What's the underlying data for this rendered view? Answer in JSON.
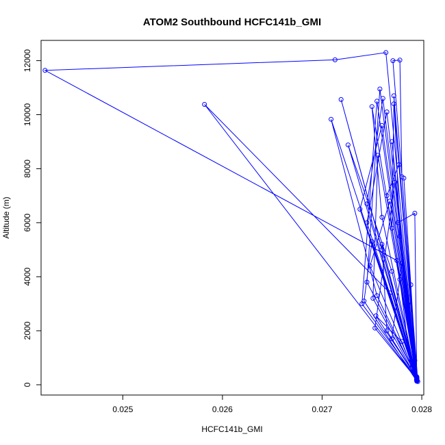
{
  "chart_data": {
    "type": "line",
    "title": "ATOM2 Southbound HCFC141b_GMI",
    "xlabel": "HCFC141b_GMI",
    "ylabel": "Altitude (m)",
    "xlim": [
      0.02418,
      0.02802
    ],
    "ylim": [
      -380,
      12750
    ],
    "x_ticks": [
      0.025,
      0.026,
      0.027,
      0.028
    ],
    "x_tick_labels": [
      "0.025",
      "0.026",
      "0.027",
      "0.028"
    ],
    "y_ticks": [
      0,
      2000,
      4000,
      6000,
      8000,
      10000,
      12000
    ],
    "y_tick_labels": [
      "0",
      "2000",
      "4000",
      "6000",
      "8000",
      "10000",
      "12000"
    ],
    "grid": false,
    "color": "#0000ff",
    "series": [
      {
        "points": [
          [
            0.02795,
            150
          ],
          [
            0.02764,
            12300
          ],
          [
            0.02713,
            12030
          ],
          [
            0.02422,
            11640
          ],
          [
            0.02775,
            4600
          ],
          [
            0.02795,
            200
          ],
          [
            0.02582,
            10380
          ],
          [
            0.02768,
            3400
          ],
          [
            0.02796,
            120
          ],
          [
            0.02771,
            12000
          ],
          [
            0.02778,
            12020
          ],
          [
            0.0278,
            7700
          ],
          [
            0.02795,
            180
          ],
          [
            0.02758,
            10950
          ],
          [
            0.02745,
            3800
          ],
          [
            0.02795,
            300
          ],
          [
            0.02719,
            10560
          ],
          [
            0.0276,
            5000
          ],
          [
            0.02795,
            220
          ],
          [
            0.02709,
            9830
          ],
          [
            0.02755,
            3300
          ],
          [
            0.02795,
            250
          ],
          [
            0.02726,
            8880
          ],
          [
            0.0277,
            4200
          ],
          [
            0.02795,
            160
          ],
          [
            0.0275,
            10300
          ],
          [
            0.0276,
            6200
          ],
          [
            0.02795,
            190
          ],
          [
            0.02755,
            10500
          ],
          [
            0.0274,
            3000
          ],
          [
            0.02795,
            230
          ],
          [
            0.02772,
            10700
          ],
          [
            0.02778,
            5500
          ],
          [
            0.02795,
            140
          ],
          [
            0.02765,
            10100
          ],
          [
            0.02745,
            6000
          ],
          [
            0.02795,
            260
          ],
          [
            0.0276,
            9600
          ],
          [
            0.02738,
            6500
          ],
          [
            0.02795,
            170
          ],
          [
            0.02756,
            8500
          ],
          [
            0.02751,
            3200
          ],
          [
            0.02795,
            210
          ],
          [
            0.02772,
            10400
          ],
          [
            0.0277,
            5800
          ],
          [
            0.02795,
            150
          ],
          [
            0.02761,
            10600
          ],
          [
            0.02745,
            6700
          ],
          [
            0.02795,
            240
          ],
          [
            0.0277,
            9000
          ],
          [
            0.02785,
            3300
          ],
          [
            0.02795,
            180
          ],
          [
            0.02773,
            7500
          ],
          [
            0.02753,
            2100
          ],
          [
            0.02795,
            200
          ],
          [
            0.02765,
            7000
          ],
          [
            0.02777,
            8150
          ],
          [
            0.02795,
            270
          ],
          [
            0.0275,
            5300
          ],
          [
            0.02742,
            3100
          ],
          [
            0.02795,
            130
          ],
          [
            0.02768,
            6800
          ],
          [
            0.02748,
            4400
          ],
          [
            0.02795,
            220
          ],
          [
            0.02776,
            6000
          ],
          [
            0.02793,
            6350
          ],
          [
            0.02795,
            190
          ],
          [
            0.02782,
            7650
          ],
          [
            0.02789,
            3700
          ],
          [
            0.02795,
            160
          ],
          [
            0.0278,
            4500
          ],
          [
            0.0277,
            1700
          ],
          [
            0.02795,
            250
          ],
          [
            0.02754,
            2550
          ],
          [
            0.0278,
            1600
          ],
          [
            0.02795,
            140
          ],
          [
            0.02786,
            3000
          ],
          [
            0.02793,
            900
          ],
          [
            0.02795,
            200
          ],
          [
            0.0276,
            5200
          ],
          [
            0.02765,
            2000
          ],
          [
            0.02795,
            230
          ],
          [
            0.02778,
            3900
          ],
          [
            0.02789,
            600
          ],
          [
            0.02795,
            180
          ]
        ]
      }
    ]
  }
}
